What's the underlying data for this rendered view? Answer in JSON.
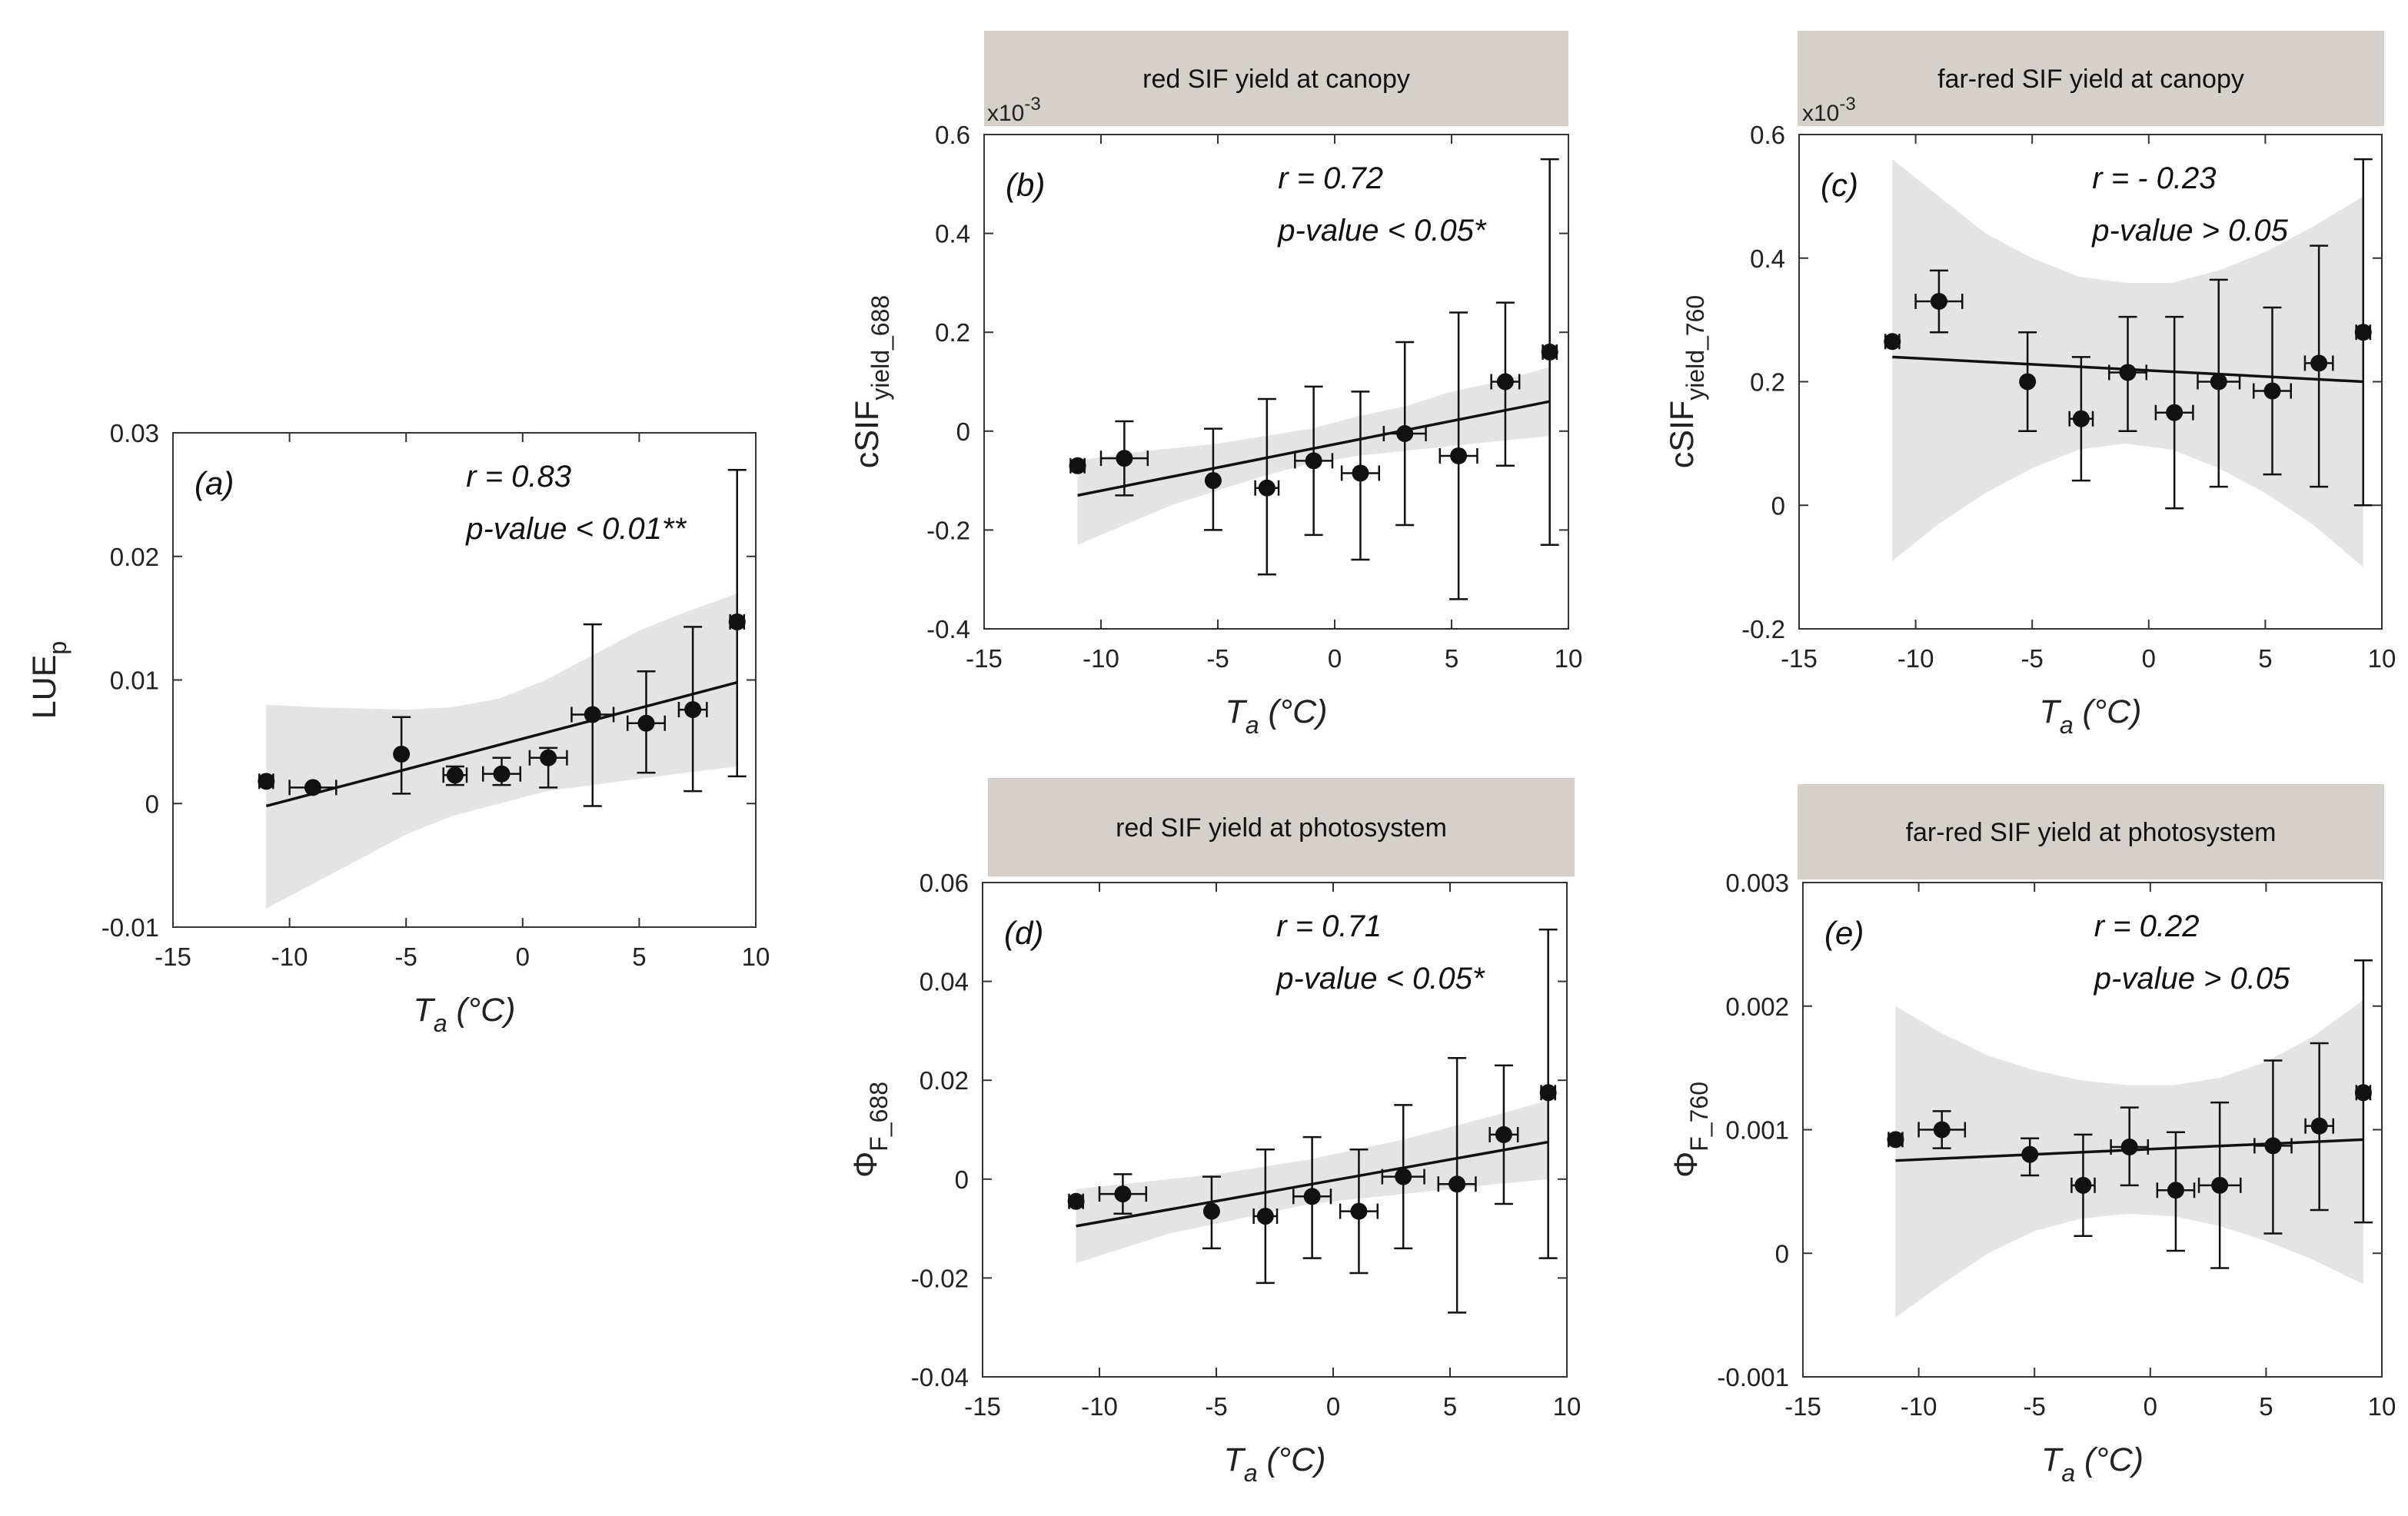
{
  "x_axis": {
    "label_main": "T",
    "label_sub": "a",
    "label_unit": " (°C)",
    "ticks": [
      "-15",
      "-10",
      "-5",
      "0",
      "5",
      "10"
    ]
  },
  "chart_data": [
    {
      "type": "scatter",
      "panel": "(a)",
      "header": "",
      "ylabel": "LUE",
      "ylabel_sub": "p",
      "multiplier": "",
      "r_text": "r = 0.83",
      "p_text": "p-value < 0.01**",
      "xlim": [
        -15,
        10
      ],
      "ylim": [
        -0.01,
        0.03
      ],
      "yticks": [
        -0.01,
        0,
        0.01,
        0.02,
        0.03
      ],
      "ytick_labels": [
        "-0.01",
        "0",
        "0.01",
        "0.02",
        "0.03"
      ],
      "points": [
        {
          "x": -11.0,
          "y": 0.0018,
          "xerr": 0.3,
          "ylo": 0.0018,
          "yhi": 0.0018
        },
        {
          "x": -9.0,
          "y": 0.0013,
          "xerr": 1.0,
          "ylo": 0.0013,
          "yhi": 0.0013
        },
        {
          "x": -5.2,
          "y": 0.004,
          "xerr": 0.1,
          "ylo": 0.0008,
          "yhi": 0.007
        },
        {
          "x": -2.9,
          "y": 0.0023,
          "xerr": 0.5,
          "ylo": 0.0015,
          "yhi": 0.003
        },
        {
          "x": -0.9,
          "y": 0.0024,
          "xerr": 0.8,
          "ylo": 0.0015,
          "yhi": 0.0037
        },
        {
          "x": 1.1,
          "y": 0.0037,
          "xerr": 0.8,
          "ylo": 0.0013,
          "yhi": 0.0045
        },
        {
          "x": 3.0,
          "y": 0.0072,
          "xerr": 0.9,
          "ylo": -0.0002,
          "yhi": 0.0145
        },
        {
          "x": 5.3,
          "y": 0.0065,
          "xerr": 0.8,
          "ylo": 0.0025,
          "yhi": 0.0107
        },
        {
          "x": 7.3,
          "y": 0.0076,
          "xerr": 0.6,
          "ylo": 0.001,
          "yhi": 0.0143
        },
        {
          "x": 9.2,
          "y": 0.0147,
          "xerr": 0.3,
          "ylo": 0.0022,
          "yhi": 0.027
        }
      ],
      "fit": {
        "x": [
          -11,
          9.2
        ],
        "y": [
          -0.0002,
          0.0098
        ]
      },
      "band": {
        "x": [
          -11,
          -9,
          -7,
          -5,
          -3,
          -1,
          1,
          3,
          5,
          7,
          9.2
        ],
        "lo": [
          -0.0085,
          -0.0065,
          -0.0045,
          -0.0025,
          -0.001,
          0.0,
          0.001,
          0.0015,
          0.002,
          0.0025,
          0.003
        ],
        "hi": [
          0.008,
          0.0078,
          0.0077,
          0.0076,
          0.0078,
          0.0085,
          0.01,
          0.012,
          0.014,
          0.0155,
          0.017
        ]
      }
    },
    {
      "type": "scatter",
      "panel": "(b)",
      "header": "red SIF yield at canopy",
      "ylabel": "cSIF",
      "ylabel_sub": "yield_688",
      "multiplier": "x10",
      "multiplier_exp": "-3",
      "r_text": "r = 0.72",
      "p_text": "p-value < 0.05*",
      "xlim": [
        -15,
        10
      ],
      "ylim": [
        -0.4,
        0.6
      ],
      "yticks": [
        -0.4,
        -0.2,
        0,
        0.2,
        0.4,
        0.6
      ],
      "ytick_labels": [
        "-0.4",
        "-0.2",
        "0",
        "0.2",
        "0.4",
        "0.6"
      ],
      "points": [
        {
          "x": -11.0,
          "y": -0.07,
          "xerr": 0.3,
          "ylo": -0.07,
          "yhi": -0.07
        },
        {
          "x": -9.0,
          "y": -0.055,
          "xerr": 1.0,
          "ylo": -0.13,
          "yhi": 0.02
        },
        {
          "x": -5.2,
          "y": -0.1,
          "xerr": 0.1,
          "ylo": -0.2,
          "yhi": 0.005
        },
        {
          "x": -2.9,
          "y": -0.115,
          "xerr": 0.5,
          "ylo": -0.29,
          "yhi": 0.065
        },
        {
          "x": -0.9,
          "y": -0.06,
          "xerr": 0.8,
          "ylo": -0.21,
          "yhi": 0.09
        },
        {
          "x": 1.1,
          "y": -0.085,
          "xerr": 0.8,
          "ylo": -0.26,
          "yhi": 0.08
        },
        {
          "x": 3.0,
          "y": -0.005,
          "xerr": 0.9,
          "ylo": -0.19,
          "yhi": 0.18
        },
        {
          "x": 5.3,
          "y": -0.05,
          "xerr": 0.8,
          "ylo": -0.34,
          "yhi": 0.24
        },
        {
          "x": 7.3,
          "y": 0.1,
          "xerr": 0.6,
          "ylo": -0.07,
          "yhi": 0.26
        },
        {
          "x": 9.2,
          "y": 0.16,
          "xerr": 0.3,
          "ylo": -0.23,
          "yhi": 0.55
        }
      ],
      "fit": {
        "x": [
          -11,
          9.2
        ],
        "y": [
          -0.13,
          0.06
        ]
      },
      "band": {
        "x": [
          -11,
          -9,
          -7,
          -5,
          -3,
          -1,
          1,
          3,
          5,
          7,
          9.2
        ],
        "lo": [
          -0.23,
          -0.19,
          -0.15,
          -0.12,
          -0.09,
          -0.065,
          -0.05,
          -0.04,
          -0.03,
          -0.02,
          -0.01
        ],
        "hi": [
          -0.06,
          -0.045,
          -0.035,
          -0.025,
          -0.01,
          0.005,
          0.03,
          0.05,
          0.08,
          0.1,
          0.13
        ]
      }
    },
    {
      "type": "scatter",
      "panel": "(c)",
      "header": "far-red SIF yield at canopy",
      "ylabel": "cSIF",
      "ylabel_sub": "yield_760",
      "multiplier": "x10",
      "multiplier_exp": "-3",
      "r_text": "r = - 0.23",
      "p_text": "p-value > 0.05",
      "xlim": [
        -15,
        10
      ],
      "ylim": [
        -0.2,
        0.6
      ],
      "yticks": [
        -0.2,
        0,
        0.2,
        0.4,
        0.6
      ],
      "ytick_labels": [
        "-0.2",
        "0",
        "0.2",
        "0.4",
        "0.6"
      ],
      "points": [
        {
          "x": -11.0,
          "y": 0.265,
          "xerr": 0.3,
          "ylo": 0.265,
          "yhi": 0.265
        },
        {
          "x": -9.0,
          "y": 0.33,
          "xerr": 1.0,
          "ylo": 0.28,
          "yhi": 0.38
        },
        {
          "x": -5.2,
          "y": 0.2,
          "xerr": 0.1,
          "ylo": 0.12,
          "yhi": 0.28
        },
        {
          "x": -2.9,
          "y": 0.14,
          "xerr": 0.5,
          "ylo": 0.04,
          "yhi": 0.24
        },
        {
          "x": -0.9,
          "y": 0.215,
          "xerr": 0.8,
          "ylo": 0.12,
          "yhi": 0.305
        },
        {
          "x": 1.1,
          "y": 0.15,
          "xerr": 0.8,
          "ylo": -0.005,
          "yhi": 0.305
        },
        {
          "x": 3.0,
          "y": 0.2,
          "xerr": 0.9,
          "ylo": 0.03,
          "yhi": 0.365
        },
        {
          "x": 5.3,
          "y": 0.185,
          "xerr": 0.8,
          "ylo": 0.05,
          "yhi": 0.32
        },
        {
          "x": 7.3,
          "y": 0.23,
          "xerr": 0.6,
          "ylo": 0.03,
          "yhi": 0.42
        },
        {
          "x": 9.2,
          "y": 0.28,
          "xerr": 0.3,
          "ylo": 0.0,
          "yhi": 0.56
        }
      ],
      "fit": {
        "x": [
          -11,
          9.2
        ],
        "y": [
          0.24,
          0.2
        ]
      },
      "band": {
        "x": [
          -11,
          -9,
          -7,
          -5,
          -3,
          -1,
          1,
          3,
          5,
          7,
          9.2
        ],
        "lo": [
          -0.09,
          -0.03,
          0.02,
          0.06,
          0.09,
          0.1,
          0.09,
          0.06,
          0.02,
          -0.03,
          -0.1
        ],
        "hi": [
          0.56,
          0.5,
          0.44,
          0.4,
          0.37,
          0.36,
          0.36,
          0.38,
          0.41,
          0.45,
          0.5
        ]
      }
    },
    {
      "type": "scatter",
      "panel": "(d)",
      "header": "red SIF yield at photosystem",
      "ylabel": "Φ",
      "ylabel_sub": "F_688",
      "multiplier": "",
      "r_text": "r = 0.71",
      "p_text": "p-value < 0.05*",
      "xlim": [
        -15,
        10
      ],
      "ylim": [
        -0.04,
        0.06
      ],
      "yticks": [
        -0.04,
        -0.02,
        0,
        0.02,
        0.04,
        0.06
      ],
      "ytick_labels": [
        "-0.04",
        "-0.02",
        "0",
        "0.02",
        "0.04",
        "0.06"
      ],
      "points": [
        {
          "x": -11.0,
          "y": -0.0045,
          "xerr": 0.3,
          "ylo": -0.0045,
          "yhi": -0.0045
        },
        {
          "x": -9.0,
          "y": -0.003,
          "xerr": 1.0,
          "ylo": -0.007,
          "yhi": 0.001
        },
        {
          "x": -5.2,
          "y": -0.0065,
          "xerr": 0.1,
          "ylo": -0.014,
          "yhi": 0.0005
        },
        {
          "x": -2.9,
          "y": -0.0075,
          "xerr": 0.5,
          "ylo": -0.021,
          "yhi": 0.006
        },
        {
          "x": -0.9,
          "y": -0.0035,
          "xerr": 0.8,
          "ylo": -0.016,
          "yhi": 0.0085
        },
        {
          "x": 1.1,
          "y": -0.0065,
          "xerr": 0.8,
          "ylo": -0.019,
          "yhi": 0.006
        },
        {
          "x": 3.0,
          "y": 0.0005,
          "xerr": 0.9,
          "ylo": -0.014,
          "yhi": 0.015
        },
        {
          "x": 5.3,
          "y": -0.001,
          "xerr": 0.8,
          "ylo": -0.027,
          "yhi": 0.0245
        },
        {
          "x": 7.3,
          "y": 0.009,
          "xerr": 0.6,
          "ylo": -0.005,
          "yhi": 0.023
        },
        {
          "x": 9.2,
          "y": 0.0175,
          "xerr": 0.3,
          "ylo": -0.016,
          "yhi": 0.0505
        }
      ],
      "fit": {
        "x": [
          -11,
          9.2
        ],
        "y": [
          -0.0095,
          0.0075
        ]
      },
      "band": {
        "x": [
          -11,
          -9,
          -7,
          -5,
          -3,
          -1,
          1,
          3,
          5,
          7,
          9.2
        ],
        "lo": [
          -0.017,
          -0.014,
          -0.011,
          -0.009,
          -0.007,
          -0.005,
          -0.004,
          -0.003,
          -0.002,
          -0.001,
          0.0
        ],
        "hi": [
          -0.002,
          -0.001,
          0.0,
          0.001,
          0.0025,
          0.004,
          0.006,
          0.008,
          0.0105,
          0.013,
          0.016
        ]
      }
    },
    {
      "type": "scatter",
      "panel": "(e)",
      "header": "far-red SIF yield at photosystem",
      "ylabel": "Φ",
      "ylabel_sub": "F_760",
      "multiplier": "",
      "r_text": "r = 0.22",
      "p_text": "p-value > 0.05",
      "xlim": [
        -15,
        10
      ],
      "ylim": [
        -0.001,
        0.003
      ],
      "yticks": [
        -0.001,
        0,
        0.001,
        0.002,
        0.003
      ],
      "ytick_labels": [
        "-0.001",
        "0",
        "0.001",
        "0.002",
        "0.003"
      ],
      "points": [
        {
          "x": -11.0,
          "y": 0.00092,
          "xerr": 0.3,
          "ylo": 0.00092,
          "yhi": 0.00092
        },
        {
          "x": -9.0,
          "y": 0.001,
          "xerr": 1.0,
          "ylo": 0.00085,
          "yhi": 0.00115
        },
        {
          "x": -5.2,
          "y": 0.0008,
          "xerr": 0.1,
          "ylo": 0.00063,
          "yhi": 0.00093
        },
        {
          "x": -2.9,
          "y": 0.00055,
          "xerr": 0.5,
          "ylo": 0.00014,
          "yhi": 0.00096
        },
        {
          "x": -0.9,
          "y": 0.00086,
          "xerr": 0.8,
          "ylo": 0.00055,
          "yhi": 0.00118
        },
        {
          "x": 1.1,
          "y": 0.00051,
          "xerr": 0.8,
          "ylo": 2e-05,
          "yhi": 0.00098
        },
        {
          "x": 3.0,
          "y": 0.00055,
          "xerr": 0.9,
          "ylo": -0.00012,
          "yhi": 0.00122
        },
        {
          "x": 5.3,
          "y": 0.00087,
          "xerr": 0.8,
          "ylo": 0.00016,
          "yhi": 0.00156
        },
        {
          "x": 7.3,
          "y": 0.00103,
          "xerr": 0.6,
          "ylo": 0.00035,
          "yhi": 0.0017
        },
        {
          "x": 9.2,
          "y": 0.0013,
          "xerr": 0.3,
          "ylo": 0.00025,
          "yhi": 0.00237
        }
      ],
      "fit": {
        "x": [
          -11,
          9.2
        ],
        "y": [
          0.00075,
          0.00092
        ]
      },
      "band": {
        "x": [
          -11,
          -9,
          -7,
          -5,
          -3,
          -1,
          1,
          3,
          5,
          7,
          9.2
        ],
        "lo": [
          -0.00052,
          -0.00025,
          0.0,
          0.00018,
          0.00028,
          0.00032,
          0.0003,
          0.00022,
          0.0001,
          -5e-05,
          -0.00025
        ],
        "hi": [
          0.002,
          0.00178,
          0.0016,
          0.00148,
          0.0014,
          0.00136,
          0.00136,
          0.00142,
          0.00155,
          0.00175,
          0.00205
        ]
      }
    }
  ],
  "colors": {
    "band": "#e4e4e4",
    "header_bg": "#d5d0c9",
    "ink": "#111111"
  }
}
